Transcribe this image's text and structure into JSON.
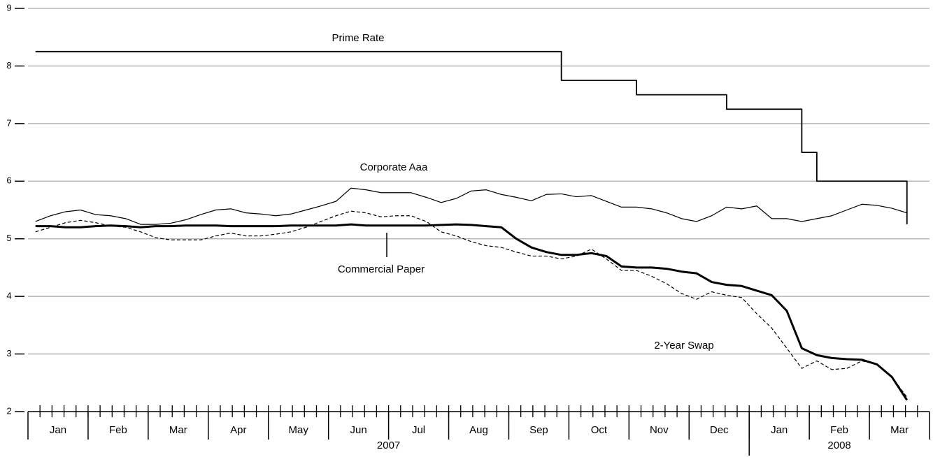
{
  "chart_data": {
    "type": "line",
    "x": [
      0.125,
      0.375,
      0.625,
      0.875,
      1.125,
      1.375,
      1.625,
      1.875,
      2.125,
      2.375,
      2.625,
      2.875,
      3.125,
      3.375,
      3.625,
      3.875,
      4.125,
      4.375,
      4.625,
      4.875,
      5.125,
      5.375,
      5.625,
      5.875,
      6.125,
      6.375,
      6.625,
      6.875,
      7.125,
      7.375,
      7.625,
      7.875,
      8.125,
      8.375,
      8.625,
      8.875,
      9.125,
      9.375,
      9.625,
      9.875,
      10.125,
      10.375,
      10.625,
      10.875,
      11.125,
      11.375,
      11.625,
      11.875,
      12.125,
      12.375,
      12.625,
      12.875,
      13.125,
      13.375,
      13.625,
      13.875,
      14.125,
      14.375,
      14.625
    ],
    "xlim": [
      0,
      15
    ],
    "xticks": [
      {
        "value": 0.5,
        "label": "Jan"
      },
      {
        "value": 1.5,
        "label": "Feb"
      },
      {
        "value": 2.5,
        "label": "Mar"
      },
      {
        "value": 3.5,
        "label": "Apr"
      },
      {
        "value": 4.5,
        "label": "May"
      },
      {
        "value": 5.5,
        "label": "Jun"
      },
      {
        "value": 6.5,
        "label": "Jul"
      },
      {
        "value": 7.5,
        "label": "Aug"
      },
      {
        "value": 8.5,
        "label": "Sep"
      },
      {
        "value": 9.5,
        "label": "Oct"
      },
      {
        "value": 10.5,
        "label": "Nov"
      },
      {
        "value": 11.5,
        "label": "Dec"
      },
      {
        "value": 12.5,
        "label": "Jan"
      },
      {
        "value": 13.5,
        "label": "Feb"
      },
      {
        "value": 14.5,
        "label": "Mar"
      }
    ],
    "x_groups": [
      {
        "label": "2007",
        "start": 0,
        "end": 12
      },
      {
        "label": "2008",
        "start": 12,
        "end": 15
      }
    ],
    "xminor_step": 0.2,
    "ylim": [
      2,
      9
    ],
    "yticks": [
      2,
      3,
      4,
      5,
      6,
      7,
      8,
      9
    ],
    "grid": true,
    "series": [
      {
        "name": "Prime Rate",
        "color": "#000000",
        "line_width": 1.8,
        "dashed": false,
        "step": true,
        "values": [
          8.25,
          8.25,
          8.25,
          8.25,
          8.25,
          8.25,
          8.25,
          8.25,
          8.25,
          8.25,
          8.25,
          8.25,
          8.25,
          8.25,
          8.25,
          8.25,
          8.25,
          8.25,
          8.25,
          8.25,
          8.25,
          8.25,
          8.25,
          8.25,
          8.25,
          8.25,
          8.25,
          8.25,
          8.25,
          8.25,
          8.25,
          8.25,
          8.25,
          8.25,
          8.25,
          7.75,
          7.75,
          7.75,
          7.75,
          7.75,
          7.5,
          7.5,
          7.5,
          7.5,
          7.5,
          7.5,
          7.25,
          7.25,
          7.25,
          7.25,
          7.25,
          6.5,
          6,
          6,
          6,
          6,
          6,
          6,
          5.25
        ]
      },
      {
        "name": "Corporate Aaa",
        "color": "#000000",
        "line_width": 1.2,
        "dashed": false,
        "step": false,
        "values": [
          5.3,
          5.4,
          5.47,
          5.5,
          5.42,
          5.4,
          5.35,
          5.25,
          5.25,
          5.27,
          5.33,
          5.42,
          5.5,
          5.52,
          5.45,
          5.43,
          5.4,
          5.43,
          5.5,
          5.57,
          5.65,
          5.88,
          5.85,
          5.8,
          5.8,
          5.8,
          5.72,
          5.63,
          5.7,
          5.83,
          5.85,
          5.77,
          5.72,
          5.66,
          5.77,
          5.78,
          5.73,
          5.75,
          5.65,
          5.55,
          5.55,
          5.52,
          5.45,
          5.35,
          5.3,
          5.4,
          5.55,
          5.52,
          5.57,
          5.35,
          5.35,
          5.3,
          5.35,
          5.4,
          5.5,
          5.6,
          5.58,
          5.53,
          5.45
        ]
      },
      {
        "name": "Commercial Paper",
        "color": "#000000",
        "line_width": 3,
        "dashed": false,
        "step": false,
        "values": [
          5.22,
          5.22,
          5.2,
          5.2,
          5.22,
          5.23,
          5.22,
          5.2,
          5.22,
          5.22,
          5.23,
          5.23,
          5.23,
          5.22,
          5.22,
          5.22,
          5.22,
          5.23,
          5.23,
          5.23,
          5.23,
          5.25,
          5.23,
          5.23,
          5.23,
          5.23,
          5.23,
          5.24,
          5.25,
          5.24,
          5.22,
          5.2,
          5.0,
          4.85,
          4.77,
          4.72,
          4.72,
          4.75,
          4.7,
          4.52,
          4.5,
          4.5,
          4.48,
          4.43,
          4.4,
          4.25,
          4.2,
          4.18,
          4.1,
          4.02,
          3.75,
          3.1,
          2.98,
          2.93,
          2.91,
          2.9,
          2.82,
          2.6,
          2.2
        ]
      },
      {
        "name": "2-Year Swap",
        "color": "#000000",
        "line_width": 1.2,
        "dashed": true,
        "step": false,
        "values": [
          5.12,
          5.2,
          5.28,
          5.32,
          5.28,
          5.22,
          5.2,
          5.12,
          5.02,
          4.98,
          4.98,
          4.98,
          5.05,
          5.1,
          5.05,
          5.05,
          5.08,
          5.12,
          5.2,
          5.3,
          5.4,
          5.48,
          5.45,
          5.38,
          5.4,
          5.4,
          5.3,
          5.12,
          5.05,
          4.95,
          4.88,
          4.85,
          4.77,
          4.7,
          4.7,
          4.65,
          4.7,
          4.82,
          4.65,
          4.45,
          4.45,
          4.35,
          4.22,
          4.05,
          3.95,
          4.08,
          4.02,
          3.98,
          3.7,
          3.45,
          3.1,
          2.75,
          2.88,
          2.73,
          2.75,
          2.88,
          2.82,
          2.6,
          2.25
        ]
      }
    ]
  }
}
